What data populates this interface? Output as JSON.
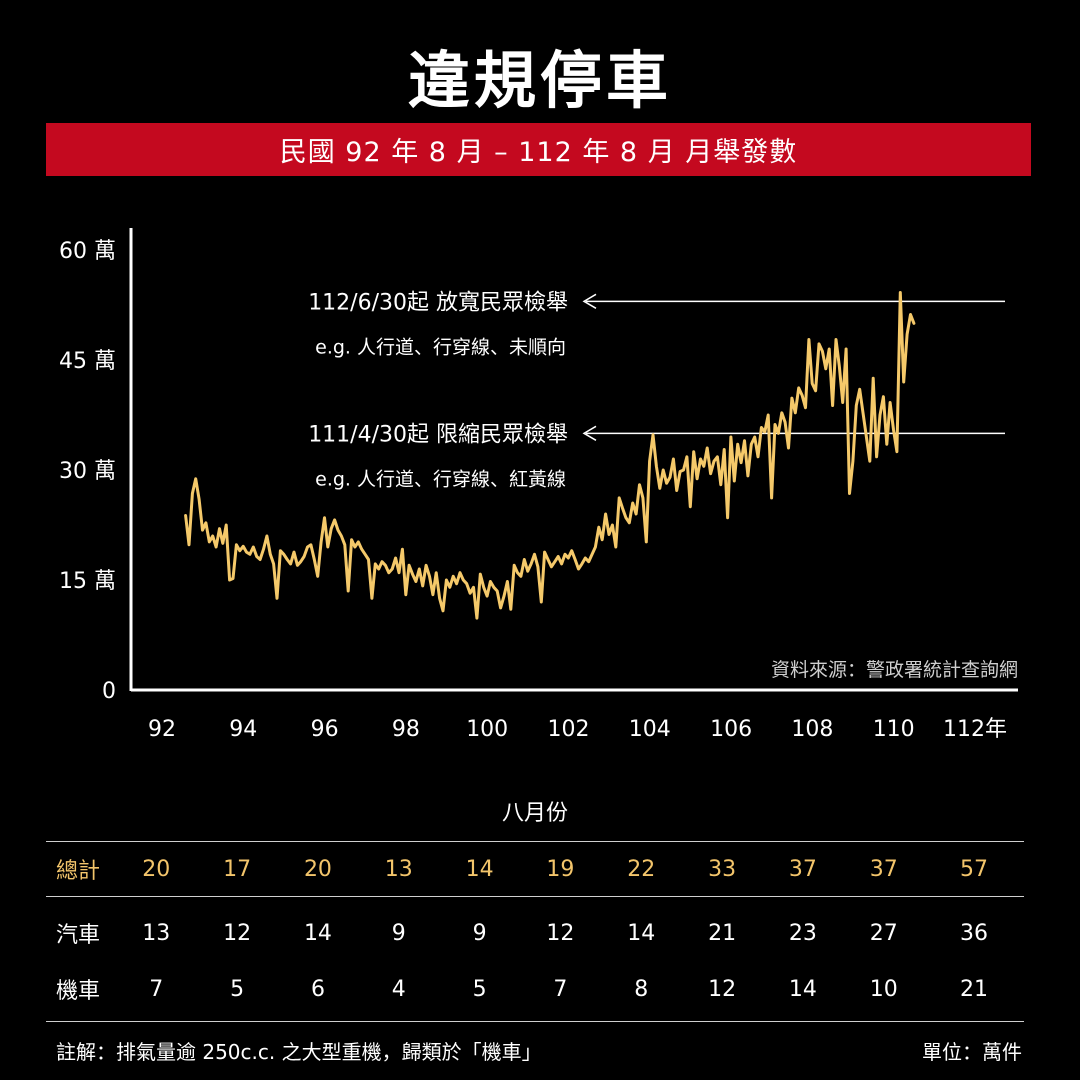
{
  "title": "違規停車",
  "subtitle": "民國 92 年 8 月 – 112 年 8 月 月舉發數",
  "colors": {
    "background": "#000000",
    "banner": "#c4091f",
    "line": "#f5c96a",
    "axis": "#ffffff",
    "total_row": "#f3c56b"
  },
  "chart_data": {
    "type": "line",
    "title": "違規停車",
    "subtitle": "民國 92 年 8 月 – 112 年 8 月 月舉發數",
    "yticks": [
      "60 萬",
      "45 萬",
      "30 萬",
      "15 萬",
      "0"
    ],
    "ytick_values": [
      600000,
      450000,
      300000,
      150000,
      0
    ],
    "xticks": [
      "92",
      "94",
      "96",
      "98",
      "100",
      "102",
      "104",
      "106",
      "108",
      "110",
      "112年"
    ],
    "xtick_values": [
      92,
      94,
      96,
      98,
      100,
      102,
      104,
      106,
      108,
      110,
      112
    ],
    "xlim": [
      92.58,
      112.67
    ],
    "ylim": [
      0,
      600000
    ],
    "grid": false,
    "series": [
      {
        "x_start": 92.58,
        "x_step": 0.08333,
        "values": [
          238000,
          198000,
          268000,
          288000,
          260000,
          218000,
          228000,
          202000,
          210000,
          195000,
          220000,
          200000,
          225000,
          150000,
          152000,
          198000,
          190000,
          196000,
          188000,
          185000,
          195000,
          182000,
          178000,
          192000,
          210000,
          185000,
          172000,
          125000,
          190000,
          185000,
          178000,
          172000,
          188000,
          170000,
          175000,
          182000,
          195000,
          198000,
          178000,
          155000,
          202000,
          235000,
          195000,
          220000,
          232000,
          218000,
          210000,
          198000,
          135000,
          205000,
          195000,
          202000,
          192000,
          185000,
          178000,
          125000,
          172000,
          165000,
          175000,
          170000,
          160000,
          165000,
          180000,
          160000,
          192000,
          130000,
          170000,
          158000,
          148000,
          165000,
          142000,
          170000,
          155000,
          130000,
          160000,
          125000,
          108000,
          150000,
          140000,
          155000,
          145000,
          160000,
          150000,
          145000,
          132000,
          140000,
          98000,
          158000,
          140000,
          128000,
          148000,
          140000,
          135000,
          112000,
          128000,
          148000,
          110000,
          170000,
          160000,
          155000,
          178000,
          162000,
          172000,
          185000,
          168000,
          120000,
          188000,
          178000,
          168000,
          175000,
          182000,
          172000,
          185000,
          180000,
          190000,
          178000,
          165000,
          172000,
          180000,
          175000,
          185000,
          195000,
          222000,
          205000,
          240000,
          212000,
          225000,
          195000,
          262000,
          248000,
          235000,
          228000,
          255000,
          240000,
          280000,
          262000,
          202000,
          312000,
          348000,
          305000,
          275000,
          300000,
          282000,
          290000,
          315000,
          272000,
          298000,
          300000,
          318000,
          250000,
          325000,
          288000,
          315000,
          305000,
          330000,
          295000,
          312000,
          318000,
          280000,
          328000,
          235000,
          345000,
          285000,
          335000,
          310000,
          340000,
          292000,
          335000,
          345000,
          318000,
          358000,
          352000,
          375000,
          262000,
          362000,
          350000,
          378000,
          365000,
          330000,
          398000,
          378000,
          412000,
          402000,
          385000,
          478000,
          418000,
          408000,
          472000,
          462000,
          438000,
          465000,
          388000,
          478000,
          442000,
          392000,
          465000,
          268000,
          312000,
          388000,
          410000,
          378000,
          345000,
          312000,
          425000,
          318000,
          375000,
          400000,
          335000,
          392000,
          355000,
          325000,
          542000,
          420000,
          485000,
          512000,
          500000
        ]
      }
    ],
    "annotations": [
      {
        "label": "112/6/30起 放寬民眾檢舉",
        "note": "e.g. 人行道、行穿線、未順向",
        "y": 530000
      },
      {
        "label": "111/4/30起 限縮民眾檢舉",
        "note": "e.g. 人行道、行穿線、紅黃線",
        "y": 350000
      }
    ],
    "source": "資料來源：警政署統計查詢網"
  },
  "table": {
    "caption": "八月份",
    "total_label": "總計",
    "car_label": "汽車",
    "moto_label": "機車",
    "total": [
      "20",
      "17",
      "20",
      "13",
      "14",
      "19",
      "22",
      "33",
      "37",
      "37",
      "57"
    ],
    "car": [
      "13",
      "12",
      "14",
      "9",
      "9",
      "12",
      "14",
      "21",
      "23",
      "27",
      "36"
    ],
    "moto": [
      "7",
      "5",
      "6",
      "4",
      "5",
      "7",
      "8",
      "12",
      "14",
      "10",
      "21"
    ]
  },
  "footer": {
    "note": "註解：排氣量逾 250c.c. 之大型重機，歸類於「機車」",
    "unit": "單位：萬件"
  }
}
